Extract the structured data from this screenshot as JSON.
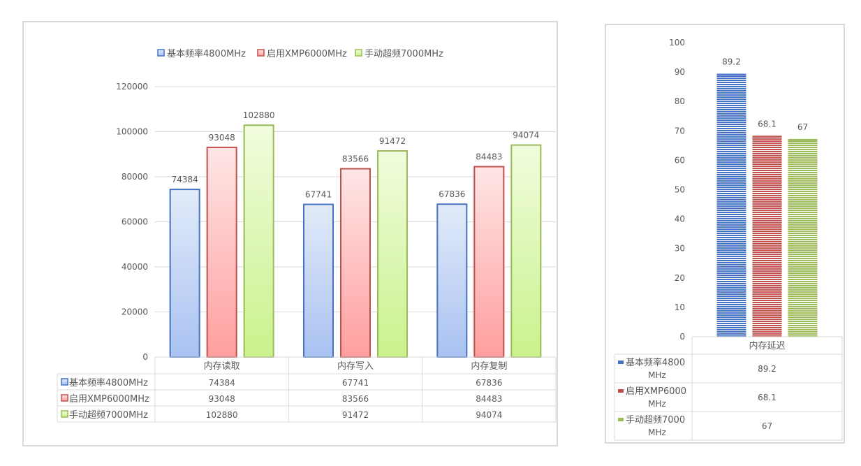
{
  "chart_data": [
    {
      "type": "bar",
      "categories": [
        "内存读取",
        "内存写入",
        "内存复制"
      ],
      "series": [
        {
          "name": "基本频率4800MHz",
          "values": [
            74384,
            67741,
            67836
          ]
        },
        {
          "name": "启用XMP6000MHz",
          "values": [
            93048,
            83566,
            84483
          ]
        },
        {
          "name": "手动超频7000MHz",
          "values": [
            102880,
            91472,
            94074
          ]
        }
      ],
      "ylim": [
        0,
        120000
      ],
      "yticks": [
        "0",
        "20000",
        "40000",
        "60000",
        "80000",
        "100000",
        "120000"
      ],
      "grid": true,
      "legend": "top",
      "data_table": true,
      "colors": {
        "series_stroke": [
          "#4472c4",
          "#c0504d",
          "#9bbb59"
        ],
        "series_top": [
          "#e2ebf9",
          "#ffe6e6",
          "#f1fcdd"
        ],
        "series_bottom": [
          "#a9c2f2",
          "#ff9e9e",
          "#c9f28c"
        ]
      }
    },
    {
      "type": "bar",
      "categories": [
        "内存延迟"
      ],
      "series": [
        {
          "name": "基本频率4800MHz",
          "values": [
            89.2
          ]
        },
        {
          "name": "启用XMP6000MHz",
          "values": [
            68.1
          ]
        },
        {
          "name": "手动超频7000MHz",
          "values": [
            67
          ]
        }
      ],
      "ylim": [
        0,
        100
      ],
      "yticks": [
        "0",
        "10",
        "20",
        "30",
        "40",
        "50",
        "60",
        "70",
        "80",
        "90",
        "100"
      ],
      "grid": false,
      "legend": "table",
      "data_table": true,
      "series_labels_in_table": [
        [
          "基本频率4800",
          "MHz"
        ],
        [
          "启用XMP6000",
          "MHz"
        ],
        [
          "手动超频7000",
          "MHz"
        ]
      ],
      "colors": {
        "series_fill": [
          "#4472c4",
          "#c0504d",
          "#9bbb59"
        ]
      }
    }
  ]
}
